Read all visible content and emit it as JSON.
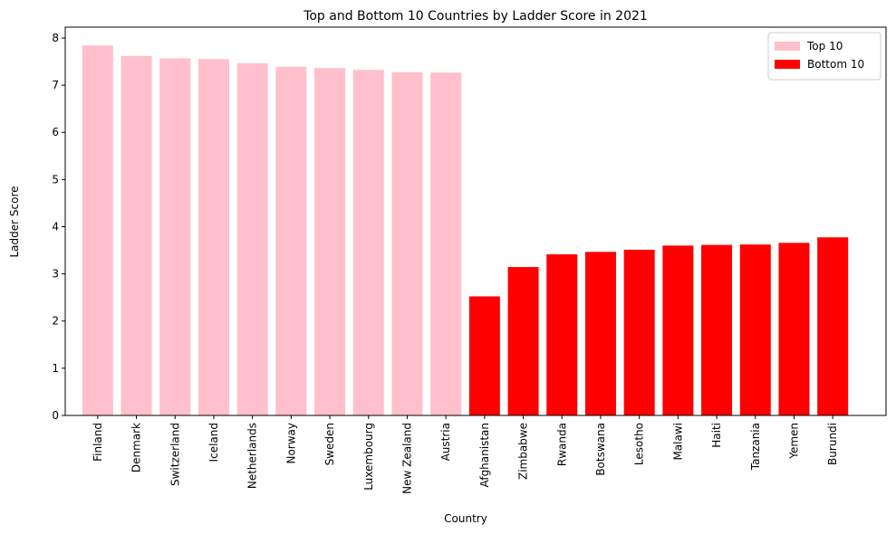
{
  "chart_data": {
    "type": "bar",
    "title": "Top and Bottom 10 Countries by Ladder Score in 2021",
    "x_label": "Country",
    "y_label": "Ladder Score",
    "categories": [
      "Finland",
      "Denmark",
      "Switzerland",
      "Iceland",
      "Netherlands",
      "Norway",
      "Sweden",
      "Luxembourg",
      "New Zealand",
      "Austria",
      "Afghanistan",
      "Zimbabwe",
      "Rwanda",
      "Botswana",
      "Lesotho",
      "Malawi",
      "Haiti",
      "Tanzania",
      "Yemen",
      "Burundi"
    ],
    "series": [
      {
        "name": "Top 10",
        "color": "#ffc0cb",
        "values": [
          7.842,
          7.62,
          7.571,
          7.554,
          7.464,
          7.392,
          7.363,
          7.324,
          7.277,
          7.268,
          null,
          null,
          null,
          null,
          null,
          null,
          null,
          null,
          null,
          null
        ]
      },
      {
        "name": "Bottom 10",
        "color": "#ff0000",
        "values": [
          null,
          null,
          null,
          null,
          null,
          null,
          null,
          null,
          null,
          null,
          2.523,
          3.145,
          3.415,
          3.467,
          3.512,
          3.6,
          3.615,
          3.623,
          3.658,
          3.775
        ]
      }
    ],
    "ylim": [
      0,
      8.23
    ],
    "yticks": [
      0,
      1,
      2,
      3,
      4,
      5,
      6,
      7,
      8
    ],
    "legend": "upper right"
  }
}
